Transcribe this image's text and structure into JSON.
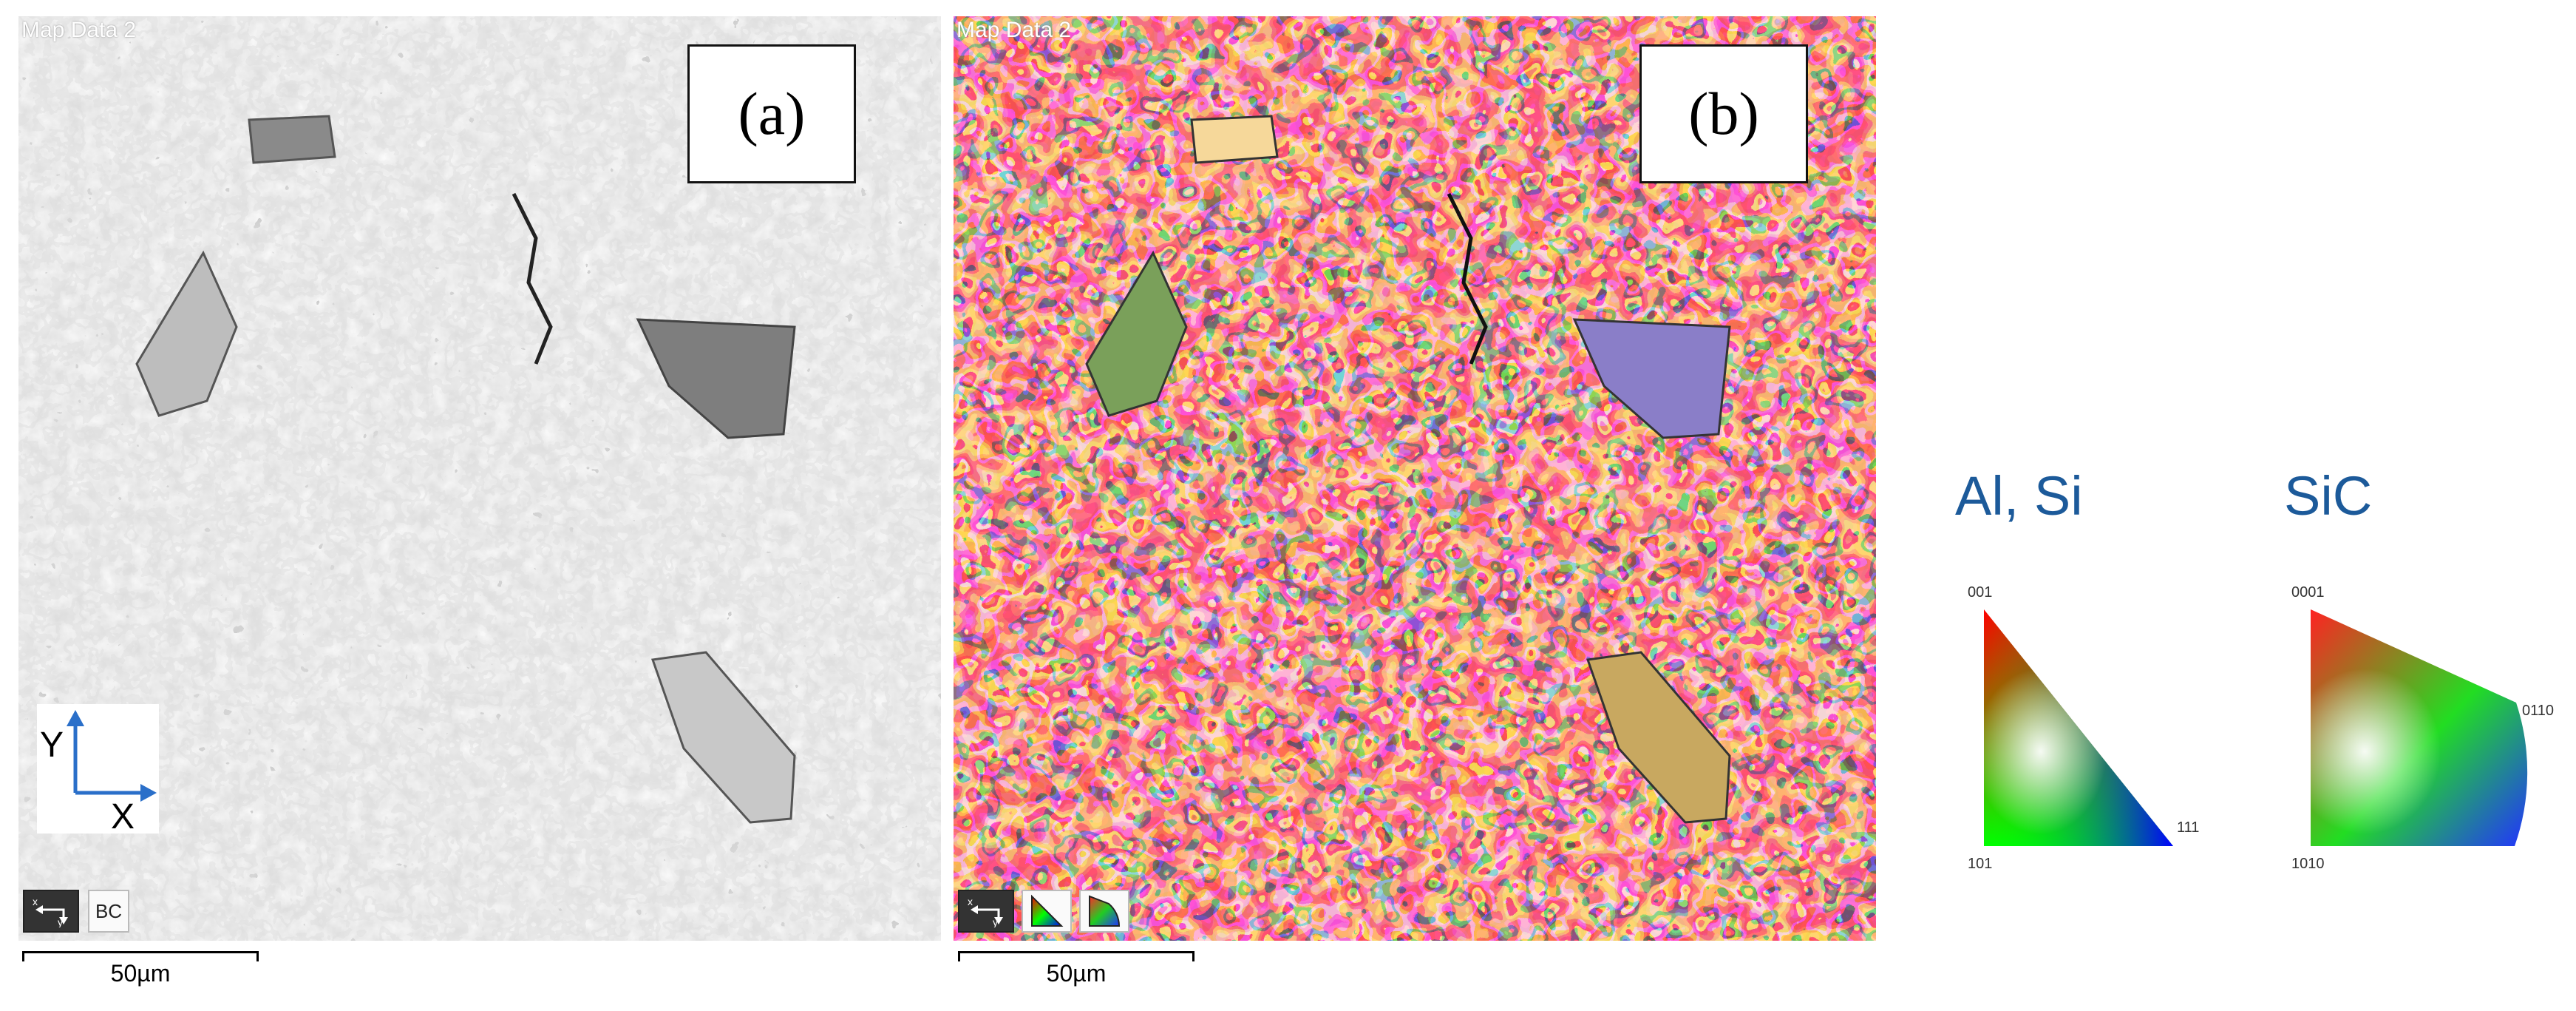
{
  "panel_a": {
    "map_title": "Map Data 2",
    "label": "(a)",
    "axis_y": "Y",
    "axis_x": "X",
    "tool_button": "BC",
    "scale": "50µm",
    "tone": "grayscale band contrast micrograph"
  },
  "panel_b": {
    "map_title": "Map Data 2",
    "label": "(b)",
    "scale": "50µm",
    "tone": "multicolor orientation map"
  },
  "legend": {
    "al_si": {
      "title": "Al, Si",
      "corners": [
        "001",
        "101",
        "111"
      ]
    },
    "sic": {
      "title": "SiC",
      "corners": [
        "0001",
        "1010",
        "0110"
      ]
    }
  },
  "colors": {
    "legend_title": "#1c5a9a",
    "gray_bg": "#dcdcdc",
    "particle_gray": "#8a8a8a",
    "ipf_red": "#ff0000",
    "ipf_green": "#00ff00",
    "ipf_blue": "#0000ff"
  }
}
